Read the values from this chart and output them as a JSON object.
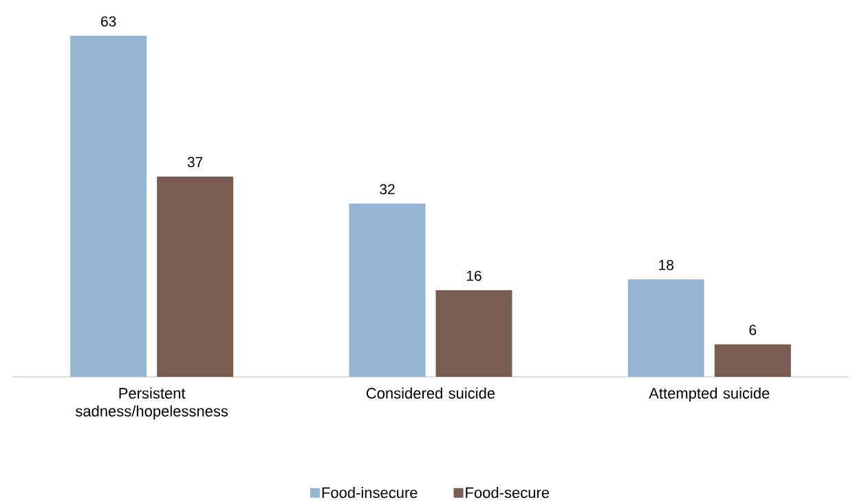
{
  "chart_data": {
    "type": "bar",
    "categories": [
      "Persistent sadness/hopelessness",
      "Considered suicide",
      "Attempted suicide"
    ],
    "series": [
      {
        "name": "Food-insecure",
        "color": "#94b6d2",
        "values": [
          63,
          32,
          18
        ]
      },
      {
        "name": "Food-secure",
        "color": "#7a5c51",
        "values": [
          37,
          16,
          6
        ]
      }
    ],
    "data_labels": true,
    "legend": "bottom"
  }
}
